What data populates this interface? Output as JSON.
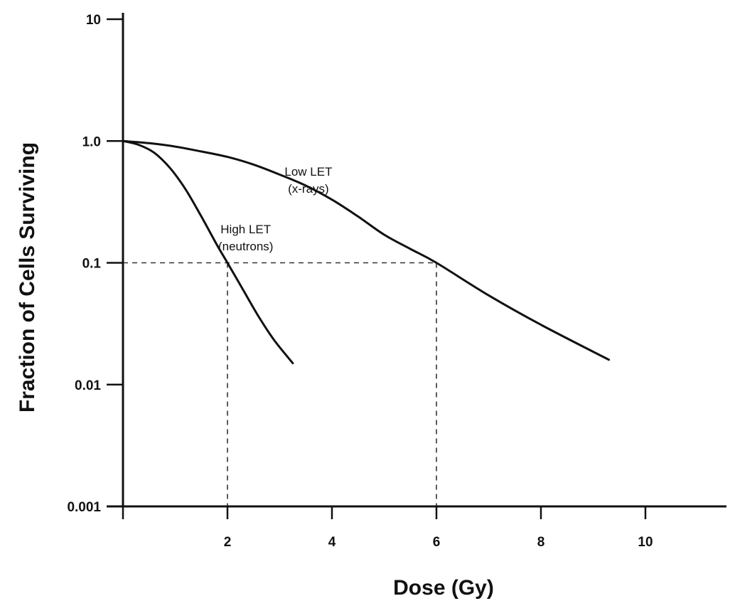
{
  "chart_data": {
    "type": "line",
    "title": "",
    "xlabel": "Dose (Gy)",
    "ylabel": "Fraction of Cells Surviving",
    "y_scale": "log",
    "xlim": [
      0,
      11.8
    ],
    "ylim": [
      0.001,
      10
    ],
    "x_ticks": [
      {
        "value": 2,
        "label": "2"
      },
      {
        "value": 4,
        "label": "4"
      },
      {
        "value": 6,
        "label": "6"
      },
      {
        "value": 8,
        "label": "8"
      },
      {
        "value": 10,
        "label": "10"
      }
    ],
    "y_ticks": [
      {
        "value": 10,
        "label": "10"
      },
      {
        "value": 1,
        "label": "1.0"
      },
      {
        "value": 0.1,
        "label": "0.1"
      },
      {
        "value": 0.01,
        "label": "0.01"
      },
      {
        "value": 0.001,
        "label": "0.001"
      }
    ],
    "grid": false,
    "series": [
      {
        "name": "Low LET\n(x-rays)",
        "label_lines": [
          "Low LET",
          "(x-rays)"
        ],
        "label_at": [
          3.55,
          0.52
        ],
        "x": [
          0,
          0.5,
          1.0,
          1.5,
          2.0,
          2.5,
          3.0,
          3.5,
          4.0,
          4.5,
          5.0,
          5.5,
          6.0,
          7.0,
          8.0,
          9.3
        ],
        "y": [
          1.0,
          0.96,
          0.9,
          0.82,
          0.74,
          0.64,
          0.53,
          0.43,
          0.33,
          0.24,
          0.17,
          0.13,
          0.1,
          0.054,
          0.031,
          0.016
        ]
      },
      {
        "name": "High LET\n(neutrons)",
        "label_lines": [
          "High LET",
          "(neutrons)"
        ],
        "label_at": [
          2.35,
          0.175
        ],
        "x": [
          0,
          0.3,
          0.6,
          0.9,
          1.2,
          1.5,
          1.8,
          2.0,
          2.3,
          2.6,
          2.9,
          3.25
        ],
        "y": [
          1.0,
          0.93,
          0.8,
          0.6,
          0.4,
          0.24,
          0.14,
          0.1,
          0.06,
          0.036,
          0.023,
          0.015
        ]
      }
    ],
    "reference_lines": [
      {
        "y": 0.1,
        "x_from": 0,
        "x_to": 6,
        "style": "dashed"
      },
      {
        "x": 2,
        "y_from": 0.001,
        "y_to": 0.1,
        "style": "dashed"
      },
      {
        "x": 6,
        "y_from": 0.001,
        "y_to": 0.1,
        "style": "dashed"
      }
    ]
  }
}
